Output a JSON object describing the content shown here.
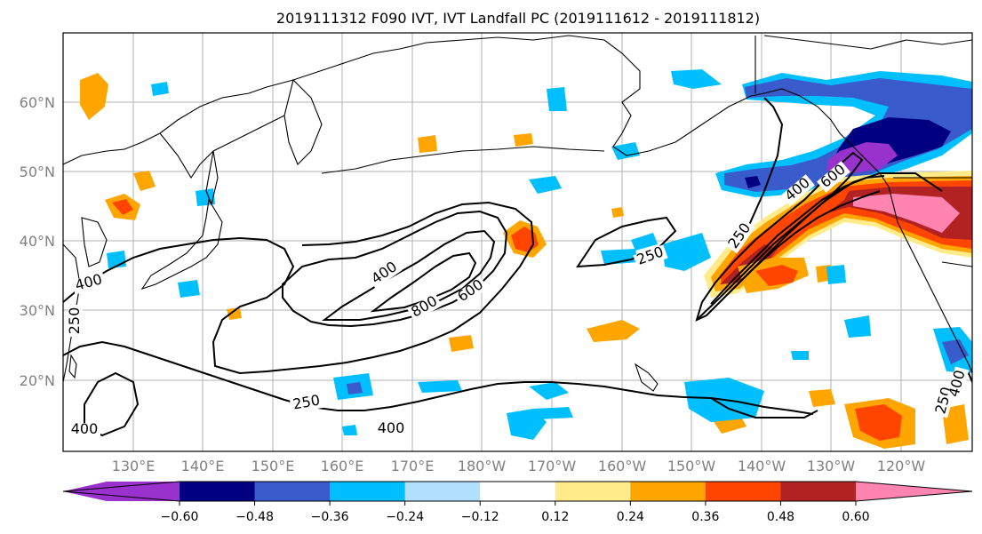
{
  "title": "2019111312 F090 IVT, IVT Landfall PC (2019111612 - 2019111812)",
  "lat_labels": [
    "60°N",
    "50°N",
    "40°N",
    "30°N",
    "20°N"
  ],
  "lon_labels": [
    "130°E",
    "140°E",
    "150°E",
    "160°E",
    "170°E",
    "180°W",
    "170°W",
    "160°W",
    "150°W",
    "140°W",
    "130°W",
    "120°W"
  ],
  "colorbar": {
    "tick_labels": [
      "−0.60",
      "−0.48",
      "−0.36",
      "−0.24",
      "−0.12",
      "0.12",
      "0.24",
      "0.36",
      "0.48",
      "0.60"
    ],
    "colors": [
      "#9932cc",
      "#000080",
      "#3a5bcc",
      "#00bfff",
      "#b2e0ff",
      "#ffffff",
      "#ffeb8a",
      "#ffa500",
      "#ff4500",
      "#b22222",
      "#ff85b0"
    ]
  },
  "contour_labels": [
    "400",
    "800",
    "600",
    "250",
    "400",
    "600",
    "250",
    "400",
    "250",
    "400",
    "250",
    "400",
    "250",
    "400"
  ],
  "colors": {
    "contour": "#000000",
    "grid": "#b0b0b0",
    "tick_text": "#808080"
  }
}
